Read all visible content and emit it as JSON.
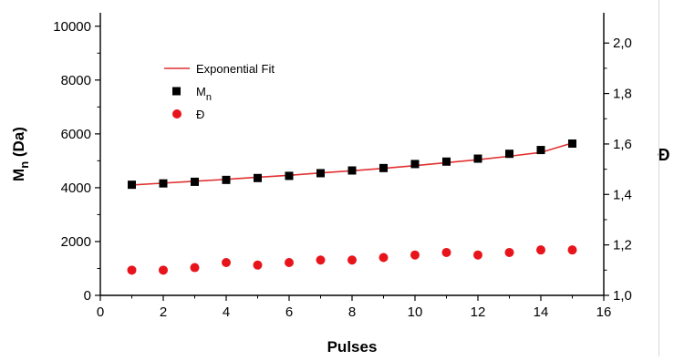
{
  "chart_data": {
    "type": "scatter",
    "title": "",
    "xlabel": "Pulses",
    "ylabel_left": {
      "main": "M",
      "sub": "n",
      "unit": "(Da)"
    },
    "ylabel_right": "Đ",
    "xlim": [
      0,
      16
    ],
    "ylim_left": [
      0,
      10500
    ],
    "ylim_right": [
      1.0,
      2.12
    ],
    "x_ticks": [
      0,
      2,
      4,
      6,
      8,
      10,
      12,
      14,
      16
    ],
    "x_tick_labels": [
      "0",
      "2",
      "4",
      "6",
      "8",
      "10",
      "12",
      "14",
      "16"
    ],
    "y_left_ticks": [
      0,
      2000,
      4000,
      6000,
      8000,
      10000
    ],
    "y_left_tick_labels": [
      "0",
      "2000",
      "4000",
      "6000",
      "8000",
      "10000"
    ],
    "y_right_ticks": [
      1.0,
      1.2,
      1.4,
      1.6,
      1.8,
      2.0
    ],
    "y_right_tick_labels": [
      "1,0",
      "1,2",
      "1,4",
      "1,6",
      "1,8",
      "2,0"
    ],
    "grid": false,
    "legend_placement": "top-left",
    "legend": [
      {
        "label": "Exponential Fit",
        "sub": "",
        "marker": "line",
        "color": "#e03030"
      },
      {
        "label": "M",
        "sub": "n",
        "marker": "square",
        "color": "#000000"
      },
      {
        "label": "Đ",
        "sub": "",
        "marker": "circle",
        "color": "#e8141b"
      }
    ],
    "series": [
      {
        "name": "Mn",
        "axis": "left",
        "marker": "square",
        "color": "#000000",
        "x": [
          1,
          2,
          3,
          4,
          5,
          6,
          7,
          8,
          9,
          10,
          11,
          12,
          13,
          14,
          15
        ],
        "y": [
          4110,
          4160,
          4220,
          4290,
          4360,
          4440,
          4540,
          4640,
          4730,
          4880,
          4970,
          5080,
          5260,
          5400,
          5640
        ]
      },
      {
        "name": "Đ",
        "axis": "right",
        "marker": "circle",
        "color": "#e8141b",
        "x": [
          1,
          2,
          3,
          4,
          5,
          6,
          7,
          8,
          9,
          10,
          11,
          12,
          13,
          14,
          15
        ],
        "y": [
          1.1,
          1.1,
          1.11,
          1.13,
          1.12,
          1.13,
          1.14,
          1.14,
          1.15,
          1.16,
          1.17,
          1.16,
          1.17,
          1.18,
          1.18
        ]
      }
    ],
    "fit": {
      "name": "Exponential Fit",
      "axis": "left",
      "color": "#e03030",
      "x": [
        1,
        2,
        3,
        4,
        5,
        6,
        7,
        8,
        9,
        10,
        11,
        12,
        13,
        14,
        15
      ],
      "y": [
        4100,
        4170,
        4240,
        4310,
        4390,
        4460,
        4550,
        4630,
        4720,
        4820,
        4930,
        5040,
        5170,
        5310,
        5660
      ]
    }
  }
}
